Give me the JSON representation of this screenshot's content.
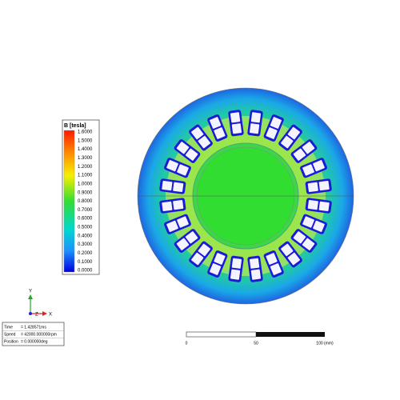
{
  "legend": {
    "title": "B [tesla]",
    "labels": [
      "1.6000",
      "1.5000",
      "1.4000",
      "1.3000",
      "1.2000",
      "1.1000",
      "1.0000",
      "0.9000",
      "0.8000",
      "0.7000",
      "0.6000",
      "0.5000",
      "0.4000",
      "0.3000",
      "0.2000",
      "0.1000",
      "0.0000"
    ]
  },
  "axes": {
    "y": "Y",
    "z": "Z",
    "x": "X"
  },
  "info": {
    "rows": [
      {
        "label": "Time",
        "value": "= 1.428571ms"
      },
      {
        "label": "Speed",
        "value": "= 42000.000000rpm"
      },
      {
        "label": "Position",
        "value": "= 0.000000deg"
      }
    ]
  },
  "scale": {
    "labels": [
      "0",
      "50",
      "100 (mm)"
    ]
  }
}
